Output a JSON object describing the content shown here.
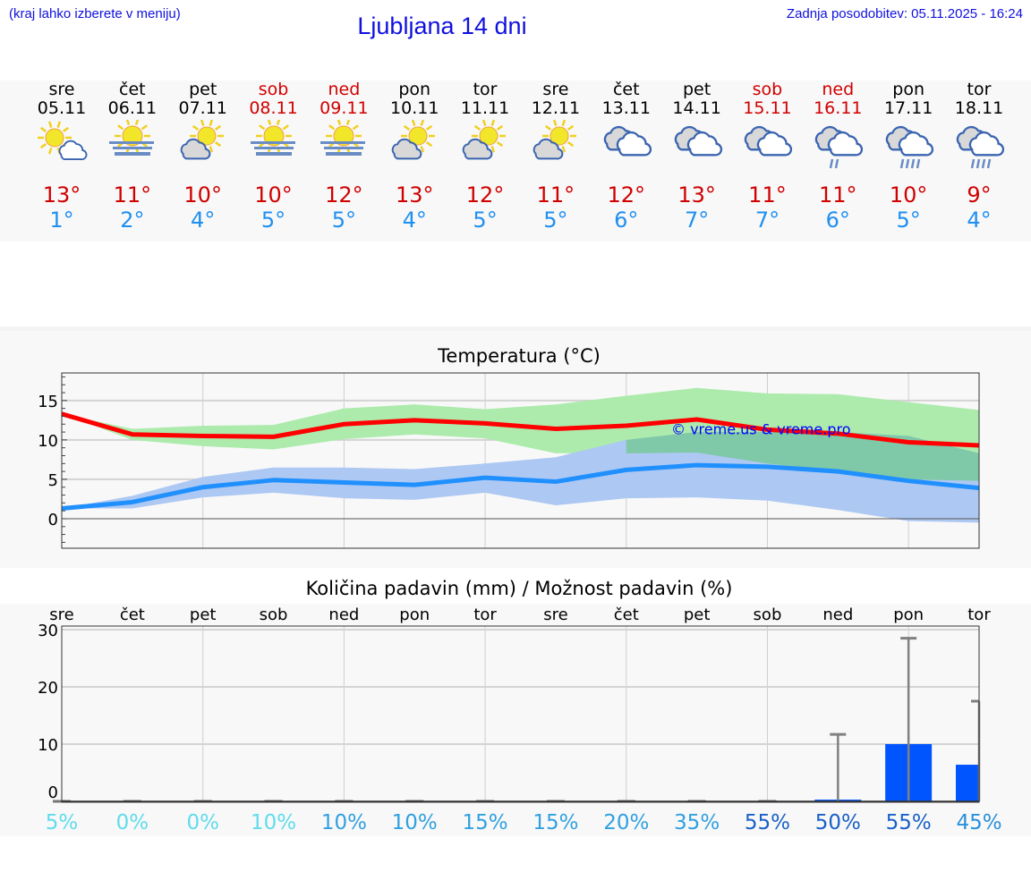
{
  "header": {
    "hint": "(kraj lahko izberete v meniju)",
    "title": "Ljubljana 14 dni",
    "updated": "Zadnja posodobitev: 05.11.2025 - 16:24"
  },
  "days": [
    {
      "name": "sre",
      "date": "05.11",
      "weekend": false,
      "icon": "sun-small-cloud",
      "max": "13°",
      "min": "1°"
    },
    {
      "name": "čet",
      "date": "06.11",
      "weekend": false,
      "icon": "sun-fog",
      "max": "11°",
      "min": "2°"
    },
    {
      "name": "pet",
      "date": "07.11",
      "weekend": false,
      "icon": "partly-cloudy",
      "max": "10°",
      "min": "4°"
    },
    {
      "name": "sob",
      "date": "08.11",
      "weekend": true,
      "icon": "sun-fog",
      "max": "10°",
      "min": "5°"
    },
    {
      "name": "ned",
      "date": "09.11",
      "weekend": true,
      "icon": "sun-fog",
      "max": "12°",
      "min": "5°"
    },
    {
      "name": "pon",
      "date": "10.11",
      "weekend": false,
      "icon": "partly-cloudy",
      "max": "13°",
      "min": "4°"
    },
    {
      "name": "tor",
      "date": "11.11",
      "weekend": false,
      "icon": "partly-cloudy",
      "max": "12°",
      "min": "5°"
    },
    {
      "name": "sre",
      "date": "12.11",
      "weekend": false,
      "icon": "partly-cloudy",
      "max": "11°",
      "min": "5°"
    },
    {
      "name": "čet",
      "date": "13.11",
      "weekend": false,
      "icon": "cloudy",
      "max": "12°",
      "min": "6°"
    },
    {
      "name": "pet",
      "date": "14.11",
      "weekend": false,
      "icon": "cloudy",
      "max": "13°",
      "min": "7°"
    },
    {
      "name": "sob",
      "date": "15.11",
      "weekend": true,
      "icon": "cloudy",
      "max": "11°",
      "min": "7°"
    },
    {
      "name": "ned",
      "date": "16.11",
      "weekend": true,
      "icon": "cloudy-light-rain",
      "max": "11°",
      "min": "6°"
    },
    {
      "name": "pon",
      "date": "17.11",
      "weekend": false,
      "icon": "cloudy-rain",
      "max": "10°",
      "min": "5°"
    },
    {
      "name": "tor",
      "date": "18.11",
      "weekend": false,
      "icon": "cloudy-rain",
      "max": "9°",
      "min": "4°"
    }
  ],
  "colors": {
    "max": "#ff0000",
    "min": "#2090ff",
    "max_band": "#acebac",
    "min_band": "#adc8f2",
    "overlap": "#7fc8a8",
    "precip_bar": "#0055ff",
    "whisker": "#808080",
    "weekend": "#d00000",
    "watermark": "#0000ff"
  },
  "chart_data": [
    {
      "type": "line",
      "title": "Temperatura (°C)",
      "watermark": "© vreme.us & vreme.pro",
      "ylim": [
        -3.75,
        18.5
      ],
      "yticks": [
        0,
        5,
        10,
        15
      ],
      "grid": true,
      "series": [
        {
          "values": [
            13.3,
            10.7,
            10.5,
            10.4,
            12.0,
            12.5,
            12.1,
            11.4,
            11.8,
            12.6,
            11.3,
            10.8,
            9.7,
            9.3
          ],
          "band_upper": [
            13.3,
            11.4,
            11.8,
            11.9,
            14.0,
            14.5,
            13.9,
            14.5,
            15.6,
            16.6,
            15.9,
            15.8,
            14.8,
            13.8
          ],
          "band_lower": [
            13.3,
            10.0,
            9.2,
            8.8,
            10.1,
            10.7,
            10.2,
            8.3,
            8.3,
            8.4,
            7.0,
            6.0,
            5.0,
            4.8
          ]
        },
        {
          "values": [
            1.3,
            2.1,
            4.0,
            4.9,
            4.6,
            4.3,
            5.2,
            4.7,
            6.2,
            6.8,
            6.6,
            6.0,
            4.8,
            3.9
          ],
          "band_upper": [
            1.3,
            2.9,
            5.3,
            6.5,
            6.5,
            6.3,
            7.0,
            7.8,
            10.0,
            11.0,
            11.0,
            11.0,
            10.5,
            8.3
          ],
          "band_lower": [
            1.3,
            1.3,
            2.7,
            3.3,
            2.6,
            2.4,
            3.3,
            1.7,
            2.6,
            2.7,
            2.3,
            1.1,
            -0.3,
            -0.5
          ]
        }
      ]
    },
    {
      "type": "bar",
      "title": "Količina padavin (mm) / Možnost padavin (%)",
      "categories": [
        "sre",
        "čet",
        "pet",
        "sob",
        "ned",
        "pon",
        "tor",
        "sre",
        "čet",
        "pet",
        "sob",
        "ned",
        "pon",
        "tor"
      ],
      "ylim": [
        0,
        30
      ],
      "yticks": [
        0,
        10,
        20,
        30
      ],
      "grid": true,
      "values": [
        0,
        0,
        0,
        0,
        0,
        0,
        0,
        0,
        0,
        0,
        0,
        0.3,
        10,
        6.4
      ],
      "max_values": [
        0,
        0,
        0,
        0,
        0,
        0,
        0,
        0,
        0,
        0,
        0,
        11.7,
        28.5,
        17.5
      ],
      "probability": [
        "5%",
        "0%",
        "0%",
        "10%",
        "10%",
        "10%",
        "15%",
        "15%",
        "20%",
        "35%",
        "55%",
        "50%",
        "55%",
        "45%"
      ]
    }
  ]
}
